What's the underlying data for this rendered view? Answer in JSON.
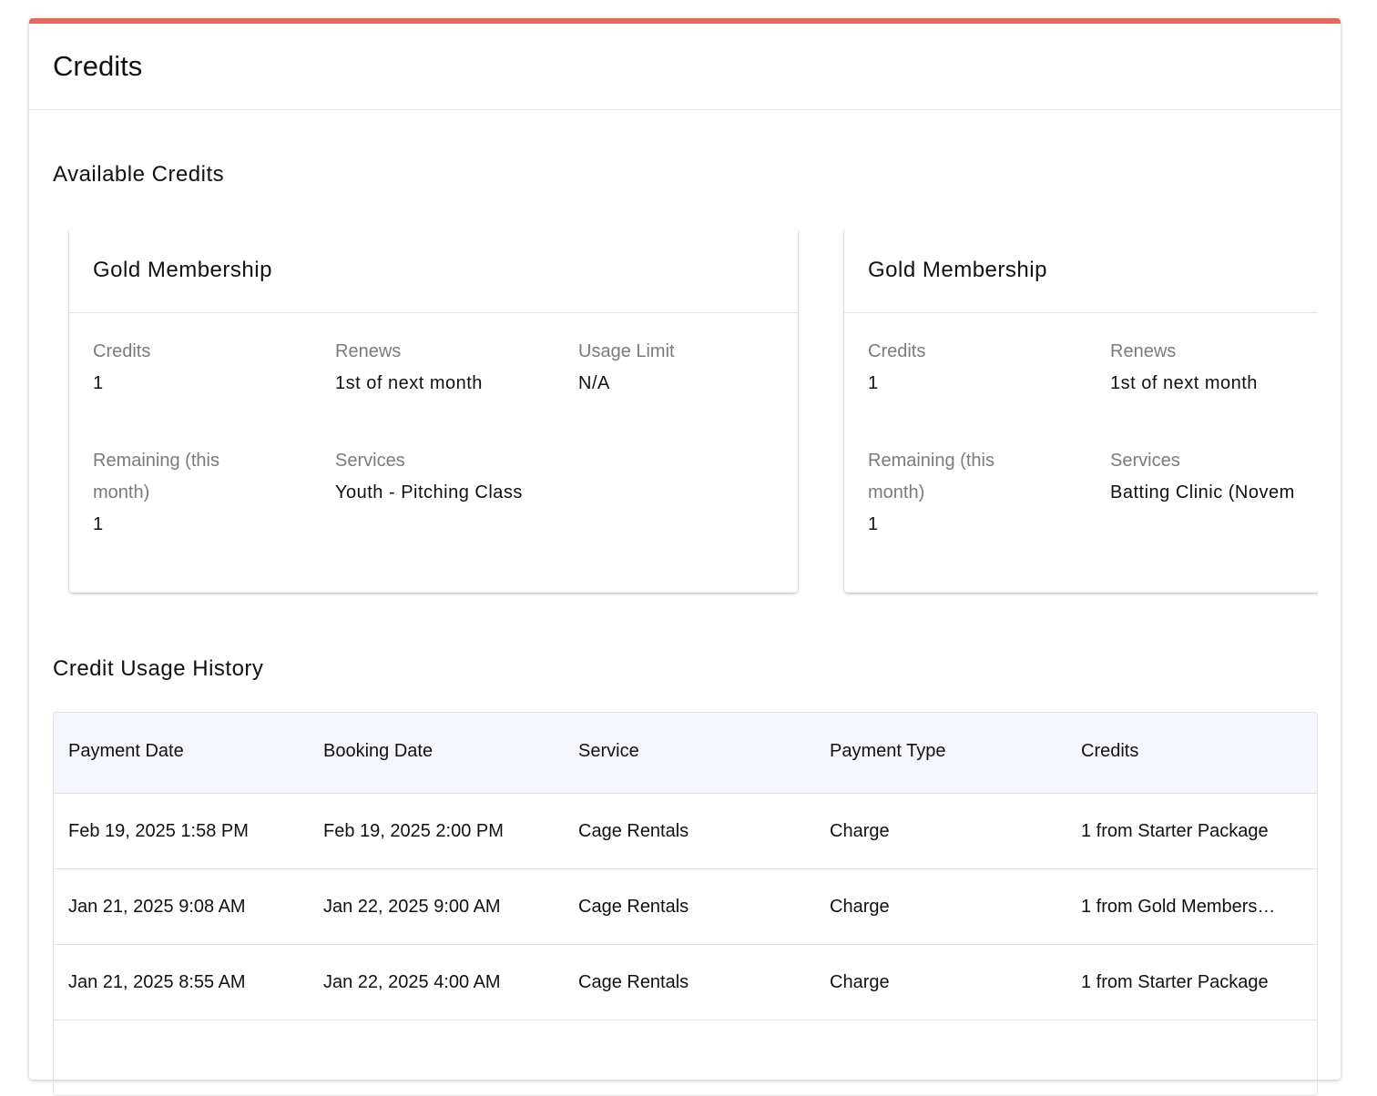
{
  "header": {
    "title": "Credits"
  },
  "available": {
    "title": "Available Credits",
    "cards": [
      {
        "title": "Gold Membership",
        "fields": [
          {
            "label": "Credits",
            "value": "1"
          },
          {
            "label": "Renews",
            "value": "1st of next month"
          },
          {
            "label": "Usage Limit",
            "value": "N/A"
          },
          {
            "label": "Remaining (this month)",
            "value": "1"
          },
          {
            "label": "Services",
            "value": "Youth - Pitching Class"
          }
        ]
      },
      {
        "title": "Gold Membership",
        "fields": [
          {
            "label": "Credits",
            "value": "1"
          },
          {
            "label": "Renews",
            "value": "1st of next month"
          },
          {
            "label": "Remaining (this month)",
            "value": "1"
          },
          {
            "label": "Services",
            "value": "Batting Clinic (Novem"
          }
        ]
      }
    ]
  },
  "history": {
    "title": "Credit Usage History",
    "table": {
      "columns": [
        "Payment Date",
        "Booking Date",
        "Service",
        "Payment Type",
        "Credits"
      ],
      "rows": [
        [
          "Feb 19, 2025 1:58 PM",
          "Feb 19, 2025 2:00 PM",
          "Cage Rentals",
          "Charge",
          "1 from Starter Package"
        ],
        [
          "Jan 21, 2025 9:08 AM",
          "Jan 22, 2025 9:00 AM",
          "Cage Rentals",
          "Charge",
          "1 from Gold Members…"
        ],
        [
          "Jan 21, 2025 8:55 AM",
          "Jan 22, 2025 4:00 AM",
          "Cage Rentals",
          "Charge",
          "1 from Starter Package"
        ]
      ]
    }
  }
}
